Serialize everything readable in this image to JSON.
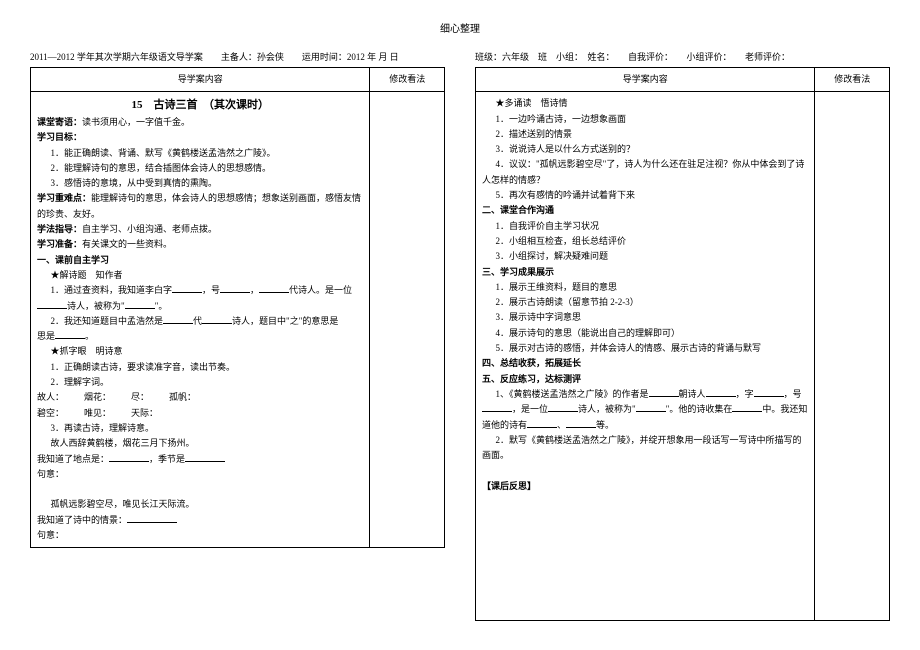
{
  "top_header": "细心整理",
  "left": {
    "header": "2011—2012 学年其次学期六年级语文导学案　　主备人：孙会侠　　运用时间：2012 年 月 日",
    "col_main": "导学案内容",
    "col_side": "修改看法",
    "title": "15　古诗三首　（其次课时）",
    "motto_label": "课堂寄语：",
    "motto": "读书须用心，一字值千金。",
    "goal_label": "学习目标：",
    "goal1": "1．能正确朗读、背诵、默写《黄鹤楼送孟浩然之广陵》。",
    "goal2": "2．能理解诗句的意思，结合插图体会诗人的思想感情。",
    "goal3": "3．感悟诗的意境，从中受到真情的熏陶。",
    "focus_label": "学习重难点：",
    "focus": "能理解诗句的意思，体会诗人的思想感情；想象送别画面，感悟友情的珍贵、友好。",
    "method_label": "学法指导：",
    "method": "自主学习、小组沟通、老师点拨。",
    "prep_label": "学习准备：",
    "prep": "有关课文的一些资料。",
    "sec1": "一、课前自主学习",
    "s1a": "★解诗题　知作者",
    "s1a1_a": "1．通过查资料，我知道李白字",
    "s1a1_b": "，号",
    "s1a1_c": "，",
    "s1a1_d": "代诗人。是一位",
    "s1a1_e": "诗人，被称为\"",
    "s1a1_f": "\"。",
    "s1a2_a": "2．我还知道题目中孟浩然是",
    "s1a2_b": "代",
    "s1a2_c": "诗人，题目中\"之\"的意思是",
    "s1a2_d": "。",
    "s1b": "★抓字眼　明诗意",
    "s1b1": "1．正确朗读古诗，要求读准字音，读出节奏。",
    "s1b2": "2．理解字词。",
    "w1a": "故人：",
    "w1b": "烟花：",
    "w1c": "尽：",
    "w1d": "孤帆：",
    "w2a": "碧空：",
    "w2b": "唯见：",
    "w2c": "天际：",
    "s1b3": "3．再读古诗，理解诗意。",
    "line1": "故人西辞黄鹤楼，烟花三月下扬州。",
    "line1q": "我知道了地点是：",
    "line1q2": "，季节是",
    "line1q3": "句意：",
    "line2": "孤帆远影碧空尽，唯见长江天际流。",
    "line2q": "我知道了诗中的情景：",
    "line2q2": "句意："
  },
  "right": {
    "header": "班级：六年级　班　小组：　姓名：　　自我评价：　　小组评价：　　老师评价：",
    "col_main": "导学案内容",
    "col_side": "修改看法",
    "sec2": "★多诵读　悟诗情",
    "r1": "1．一边吟诵古诗，一边想象画面",
    "r2": "2．描述送别的情景",
    "r3": "3．说说诗人是以什么方式送别的？",
    "r4a": "4．议议：\"孤帆远影碧空尽\"了，诗人为什么还在驻足注视？你从中体会到了诗人怎样的情感？",
    "r5": "5．再次有感情的吟诵并试着背下来",
    "sec3": "二、课堂合作沟通",
    "c1": "1．自我评价自主学习状况",
    "c2": "2．小组相互检查，组长总结评价",
    "c3": "3．小组探讨，解决疑难问题",
    "sec4": "三、学习成果展示",
    "d1": "1．展示王维资料，题目的意思",
    "d2": "2．展示古诗朗读（留意节拍 2-2-3）",
    "d3": "3．展示诗中字词意思",
    "d4": "4．展示诗句的意思（能说出自己的理解即可）",
    "d5": "5．展示对古诗的感悟，并体会诗人的情感、展示古诗的背诵与默写",
    "sec5": "四、总结收获，拓展延长",
    "sec6": "五、反应练习，达标测评",
    "e1a": "1、《黄鹤楼送孟浩然之广陵》的作者是",
    "e1b": "朝诗人",
    "e1c": "，字",
    "e1d": "，号",
    "e1e": "，是一位",
    "e1f": "诗人，被称为\"",
    "e1g": "\"。他的诗收集在",
    "e1h": "中。我还知道他的诗有",
    "e1i": "、",
    "e1j": "等。",
    "e2": "2．默写《黄鹤楼送孟浩然之广陵》，并绽开想象用一段话写一写诗中所描写的画面。",
    "reflect": "【课后反思】"
  }
}
